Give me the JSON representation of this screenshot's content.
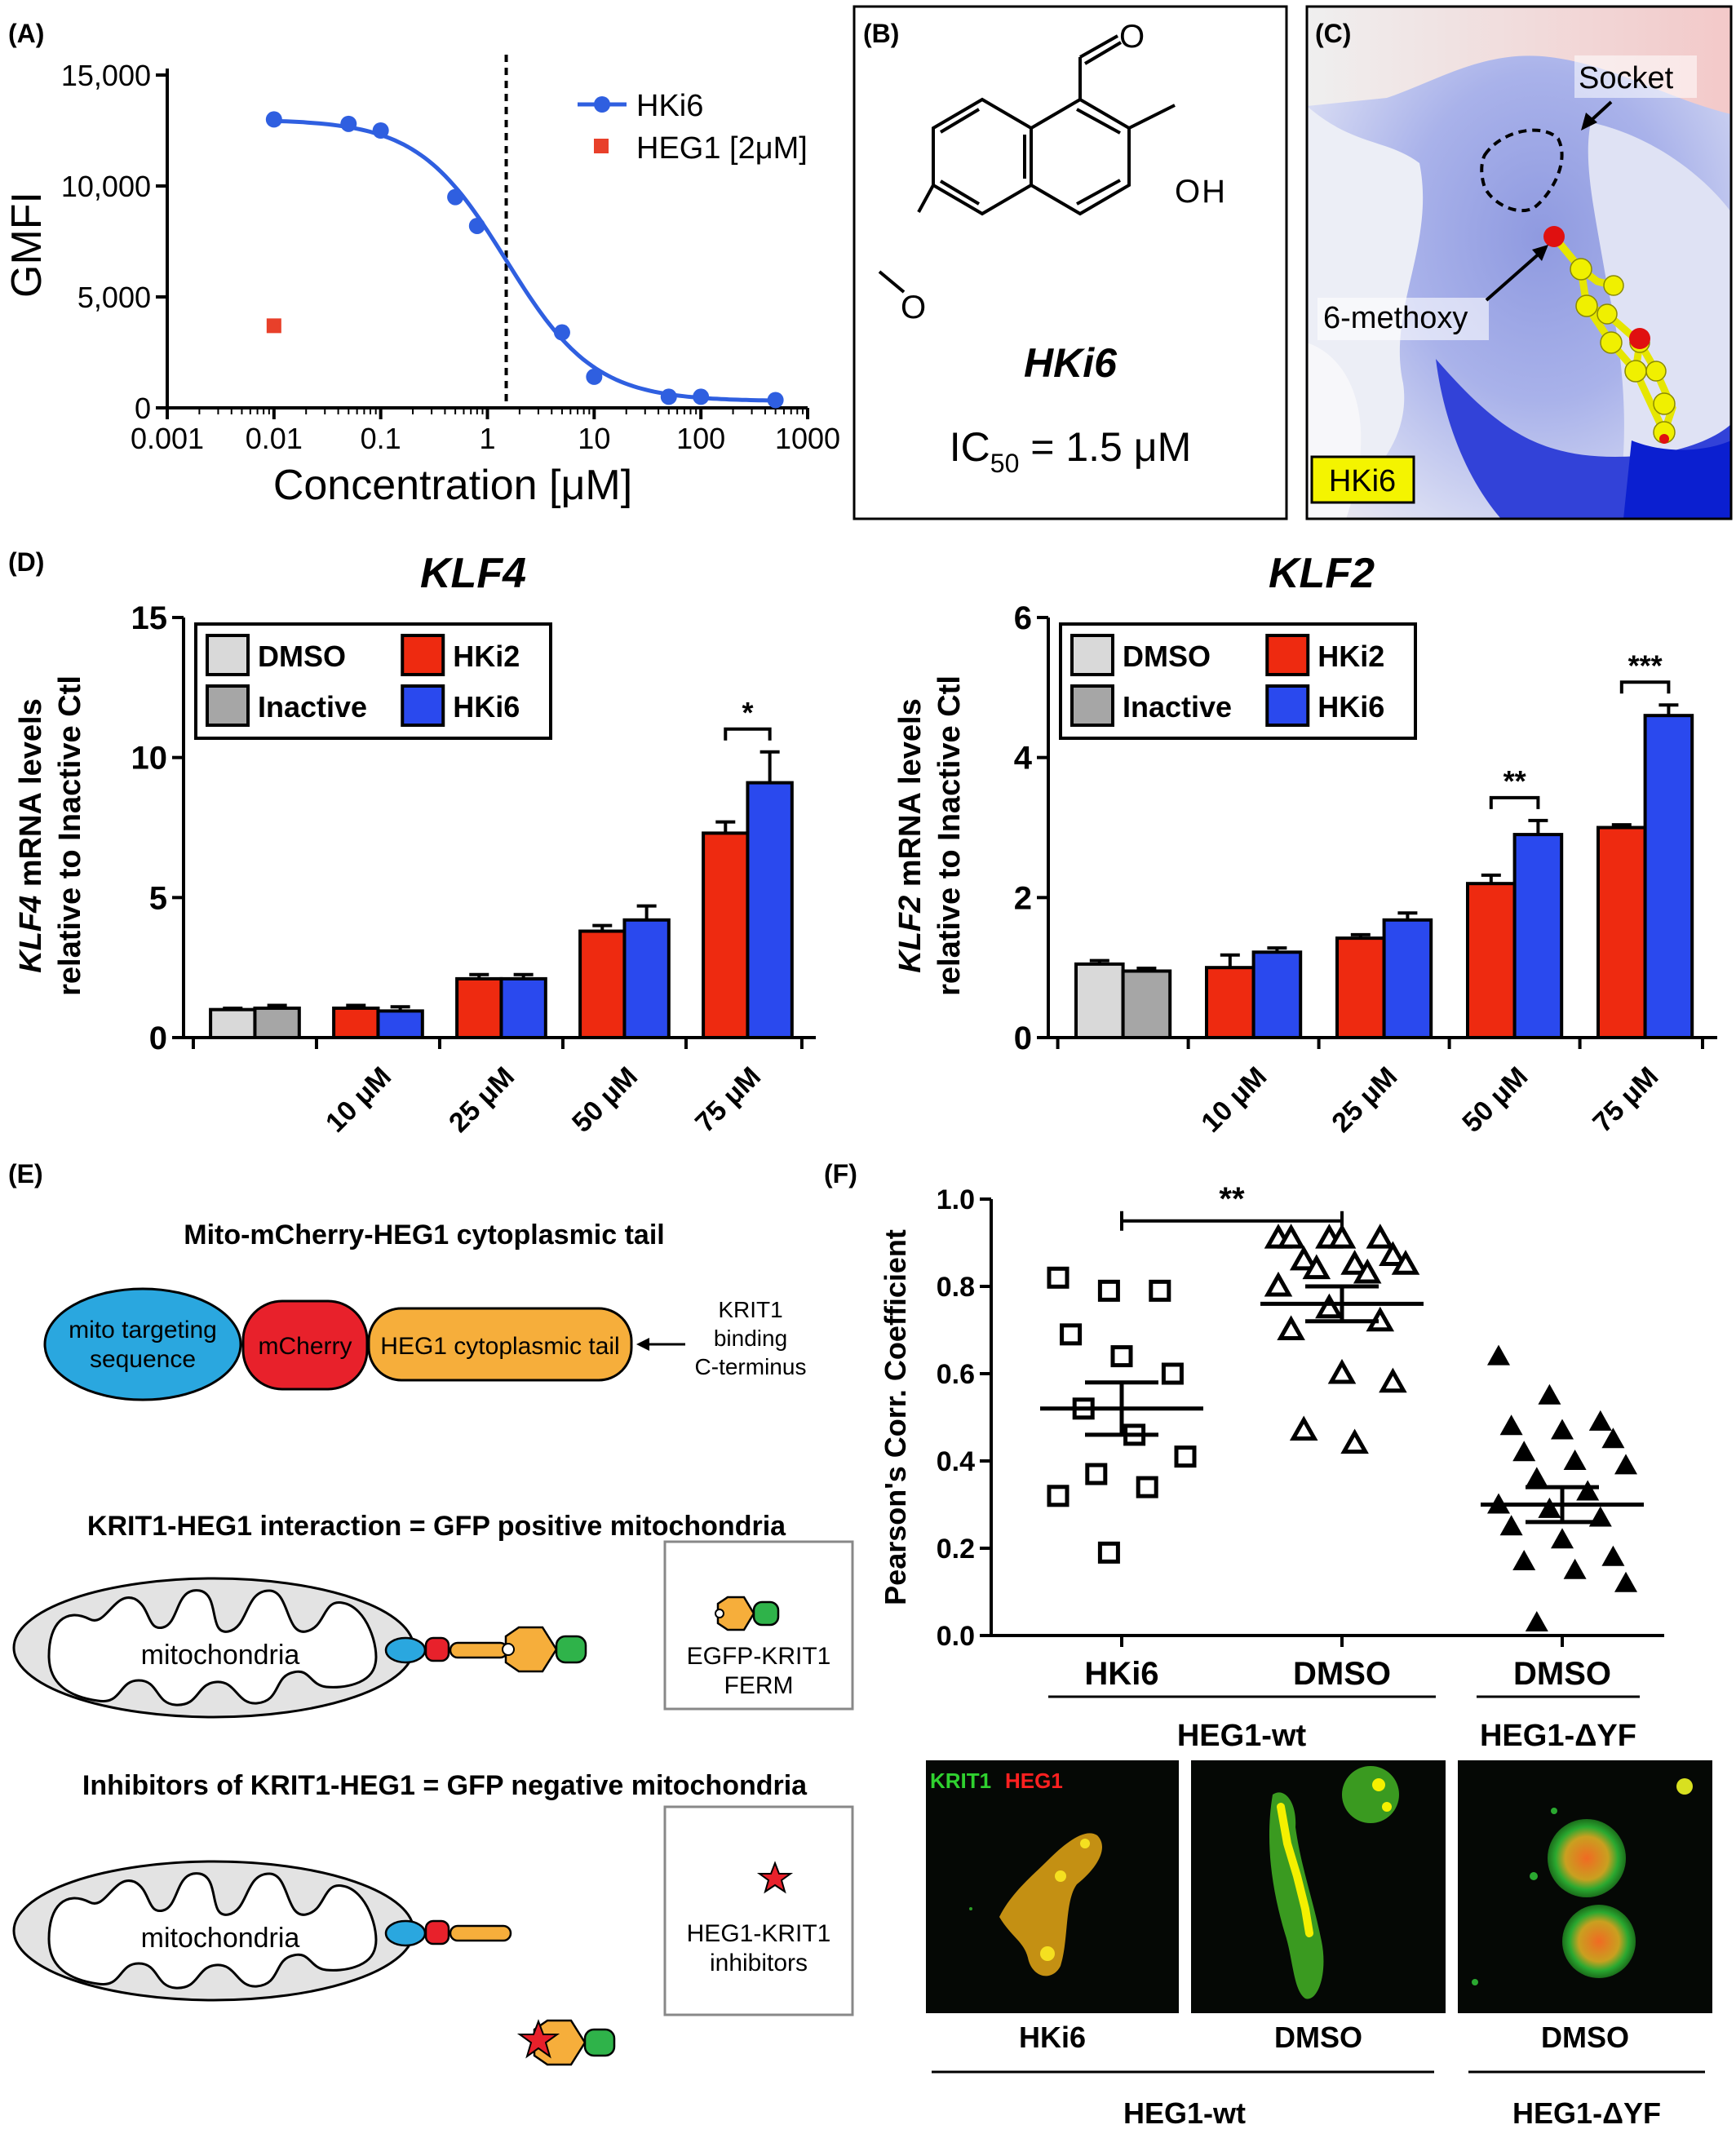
{
  "panels": {
    "A": {
      "tag": "(A)",
      "chart_data": {
        "type": "scatter",
        "xlabel": "Concentration [μM]",
        "ylabel": "GMFI",
        "xscale": "log",
        "xlim": [
          0.001,
          1000
        ],
        "ylim": [
          0,
          15000
        ],
        "x_ticks": [
          "0.001",
          "0.01",
          "0.1",
          "1",
          "10",
          "100",
          "1000"
        ],
        "y_ticks": [
          "0",
          "5,000",
          "10,000",
          "15,000"
        ],
        "ic50_line_x": 1.5,
        "grid": false,
        "legend_position": "top-right",
        "series": [
          {
            "name": "HKi6",
            "color": "#2f5fe0",
            "marker": "circle",
            "x": [
              0.01,
              0.05,
              0.1,
              0.5,
              0.8,
              5,
              10,
              50,
              100,
              500
            ],
            "y": [
              13000,
              12800,
              12500,
              9500,
              8200,
              3400,
              1400,
              500,
              500,
              350
            ]
          },
          {
            "name": "HEG1 [2μM]",
            "color": "#e8402a",
            "marker": "square",
            "x": [
              0.01
            ],
            "y": [
              3700
            ]
          }
        ]
      }
    },
    "B": {
      "tag": "(B)",
      "aldehyde_o": "O",
      "hydroxyl": "OH",
      "methoxy_o": "O",
      "compound": "HKi6",
      "ic50_prefix": "IC",
      "ic50_sub": "50",
      "ic50_value": " = 1.5 μM"
    },
    "C": {
      "tag": "(C)",
      "socket_label": "Socket",
      "methoxy_label": "6-methoxy",
      "compound_badge": "HKi6"
    },
    "D": {
      "tag": "(D)",
      "charts": [
        {
          "chart_data": {
            "type": "bar",
            "title": "KLF4",
            "ylabel_gene": "KLF4",
            "ylabel_rest": " mRNA levels",
            "ylabel_line2": "relative to Inactive Ctl",
            "ylim": [
              0,
              15
            ],
            "y_ticks": [
              "0",
              "5",
              "10",
              "15"
            ],
            "categories": [
              "",
              "10 μM",
              "25 μM",
              "50 μM",
              "75 μM"
            ],
            "legend": [
              {
                "name": "DMSO",
                "color": "#d9d9d9"
              },
              {
                "name": "HKi2",
                "color": "#ee2a10"
              },
              {
                "name": "Inactive",
                "color": "#a6a6a6"
              },
              {
                "name": "HKi6",
                "color": "#2a49ee"
              }
            ],
            "bars": [
              {
                "series": "DMSO",
                "value": 1.0,
                "err": 0.05,
                "color": "#d9d9d9",
                "group": 0,
                "pos": 0
              },
              {
                "series": "Inactive",
                "value": 1.05,
                "err": 0.1,
                "color": "#a6a6a6",
                "group": 0,
                "pos": 1
              },
              {
                "series": "HKi2",
                "value": 1.05,
                "err": 0.1,
                "color": "#ee2a10",
                "group": 1,
                "pos": 0
              },
              {
                "series": "HKi6",
                "value": 0.95,
                "err": 0.15,
                "color": "#2a49ee",
                "group": 1,
                "pos": 1
              },
              {
                "series": "HKi2",
                "value": 2.1,
                "err": 0.15,
                "color": "#ee2a10",
                "group": 2,
                "pos": 0
              },
              {
                "series": "HKi6",
                "value": 2.1,
                "err": 0.15,
                "color": "#2a49ee",
                "group": 2,
                "pos": 1
              },
              {
                "series": "HKi2",
                "value": 3.8,
                "err": 0.2,
                "color": "#ee2a10",
                "group": 3,
                "pos": 0
              },
              {
                "series": "HKi6",
                "value": 4.2,
                "err": 0.5,
                "color": "#2a49ee",
                "group": 3,
                "pos": 1
              },
              {
                "series": "HKi2",
                "value": 7.3,
                "err": 0.4,
                "color": "#ee2a10",
                "group": 4,
                "pos": 0
              },
              {
                "series": "HKi6",
                "value": 9.1,
                "err": 1.1,
                "color": "#2a49ee",
                "group": 4,
                "pos": 1
              }
            ],
            "significance": [
              {
                "group": 4,
                "label": "*"
              }
            ]
          }
        },
        {
          "chart_data": {
            "type": "bar",
            "title": "KLF2",
            "ylabel_gene": "KLF2",
            "ylabel_rest": " mRNA levels",
            "ylabel_line2": "relative to Inactive Ctl",
            "ylim": [
              0,
              6
            ],
            "y_ticks": [
              "0",
              "2",
              "4",
              "6"
            ],
            "categories": [
              "",
              "10 μM",
              "25 μM",
              "50 μM",
              "75 μM"
            ],
            "legend": [
              {
                "name": "DMSO",
                "color": "#d9d9d9"
              },
              {
                "name": "HKi2",
                "color": "#ee2a10"
              },
              {
                "name": "Inactive",
                "color": "#a6a6a6"
              },
              {
                "name": "HKi6",
                "color": "#2a49ee"
              }
            ],
            "bars": [
              {
                "series": "DMSO",
                "value": 1.05,
                "err": 0.05,
                "color": "#d9d9d9",
                "group": 0,
                "pos": 0
              },
              {
                "series": "Inactive",
                "value": 0.95,
                "err": 0.04,
                "color": "#a6a6a6",
                "group": 0,
                "pos": 1
              },
              {
                "series": "HKi2",
                "value": 1.0,
                "err": 0.18,
                "color": "#ee2a10",
                "group": 1,
                "pos": 0
              },
              {
                "series": "HKi6",
                "value": 1.22,
                "err": 0.06,
                "color": "#2a49ee",
                "group": 1,
                "pos": 1
              },
              {
                "series": "HKi2",
                "value": 1.42,
                "err": 0.05,
                "color": "#ee2a10",
                "group": 2,
                "pos": 0
              },
              {
                "series": "HKi6",
                "value": 1.68,
                "err": 0.1,
                "color": "#2a49ee",
                "group": 2,
                "pos": 1
              },
              {
                "series": "HKi2",
                "value": 2.2,
                "err": 0.12,
                "color": "#ee2a10",
                "group": 3,
                "pos": 0
              },
              {
                "series": "HKi6",
                "value": 2.9,
                "err": 0.2,
                "color": "#2a49ee",
                "group": 3,
                "pos": 1
              },
              {
                "series": "HKi2",
                "value": 3.0,
                "err": 0.04,
                "color": "#ee2a10",
                "group": 4,
                "pos": 0
              },
              {
                "series": "HKi6",
                "value": 4.6,
                "err": 0.15,
                "color": "#2a49ee",
                "group": 4,
                "pos": 1
              }
            ],
            "significance": [
              {
                "group": 3,
                "label": "**"
              },
              {
                "group": 4,
                "label": "***"
              }
            ]
          }
        }
      ]
    },
    "E": {
      "tag": "(E)",
      "title1": "Mito-mCherry-HEG1 cytoplasmic tail",
      "mito_seq_line1": "mito targeting",
      "mito_seq_line2": "sequence",
      "mcherry": "mCherry",
      "heg1_tail": "HEG1 cytoplasmic tail",
      "krit1_note_line1": "KRIT1",
      "krit1_note_line2": "binding",
      "krit1_note_line3": "C-terminus",
      "title2": "KRIT1-HEG1 interaction = GFP positive mitochondria",
      "mito_label_1": "mitochondria",
      "egfp_line1": "EGFP-KRIT1",
      "egfp_line2": "FERM",
      "title3": "Inhibitors of KRIT1-HEG1 = GFP negative mitochondria",
      "mito_label_2": "mitochondria",
      "inhib_line1": "HEG1-KRIT1",
      "inhib_line2": "inhibitors",
      "colors": {
        "mito": "#2aa7df",
        "mcherry": "#e8212b",
        "heg1": "#f6ae3b",
        "gfp": "#2fb34a",
        "organelle": "#e3e3e3"
      }
    },
    "F": {
      "tag": "(F)",
      "chart_data": {
        "type": "scatter",
        "ylabel": "Pearson's Corr. Coefficient",
        "ylim": [
          0,
          1.0
        ],
        "y_ticks": [
          "0.0",
          "0.2",
          "0.4",
          "0.6",
          "0.8",
          "1.0"
        ],
        "categories": [
          "HKi6",
          "DMSO",
          "DMSO"
        ],
        "groups": [
          "HEG1-wt",
          "HEG1-ΔYF"
        ],
        "series": [
          {
            "category": "HKi6",
            "marker": "open-square",
            "values": [
              0.82,
              0.79,
              0.79,
              0.69,
              0.64,
              0.6,
              0.52,
              0.46,
              0.41,
              0.37,
              0.34,
              0.32,
              0.19
            ],
            "mean": 0.52,
            "sem": 0.06
          },
          {
            "category": "DMSO",
            "marker": "open-triangle",
            "values": [
              0.91,
              0.91,
              0.91,
              0.91,
              0.91,
              0.87,
              0.86,
              0.85,
              0.85,
              0.84,
              0.83,
              0.8,
              0.75,
              0.72,
              0.7,
              0.6,
              0.58,
              0.47,
              0.44
            ],
            "mean": 0.76,
            "sem": 0.04
          },
          {
            "category": "DMSO",
            "marker": "filled-triangle",
            "values": [
              0.64,
              0.55,
              0.49,
              0.48,
              0.47,
              0.45,
              0.42,
              0.4,
              0.39,
              0.36,
              0.33,
              0.3,
              0.29,
              0.27,
              0.25,
              0.22,
              0.18,
              0.17,
              0.15,
              0.12,
              0.03
            ],
            "mean": 0.3,
            "sem": 0.04
          }
        ],
        "significance": {
          "from": 0,
          "to": 1,
          "label": "**"
        }
      },
      "image_legend_green": "KRIT1",
      "image_legend_red": "HEG1",
      "image_labels": [
        "HKi6",
        "DMSO",
        "DMSO"
      ],
      "image_groups": [
        "HEG1-wt",
        "HEG1-ΔYF"
      ]
    }
  }
}
